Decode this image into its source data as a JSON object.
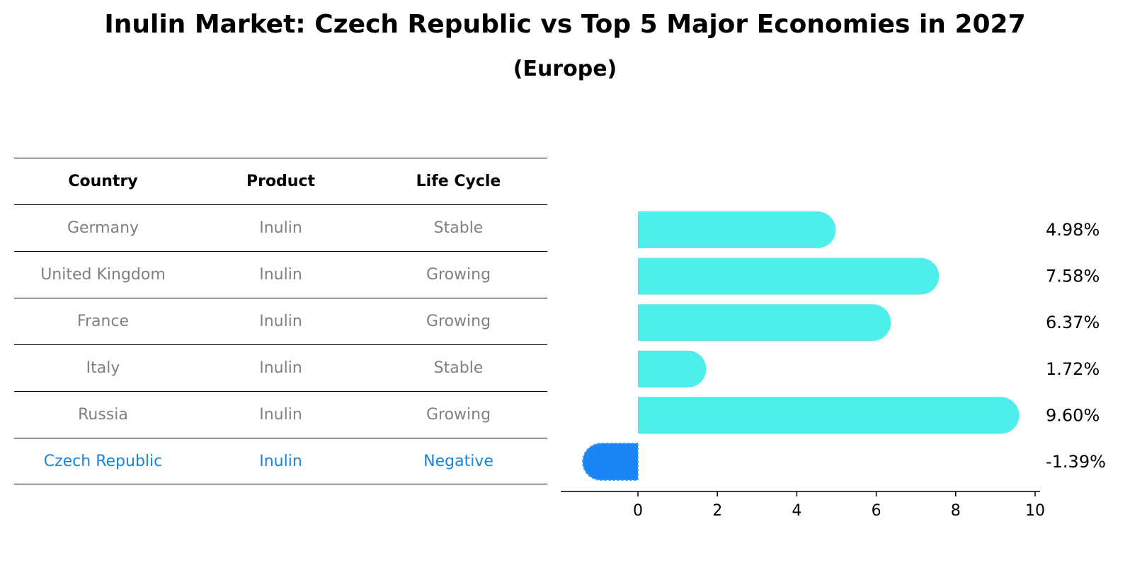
{
  "title": "Inulin Market: Czech Republic vs Top 5 Major Economies in 2027",
  "subtitle": "(Europe)",
  "table": {
    "headers": [
      "Country",
      "Product",
      "Life Cycle"
    ],
    "rows": [
      [
        "Germany",
        "Inulin",
        "Stable"
      ],
      [
        "United Kingdom",
        "Inulin",
        "Growing"
      ],
      [
        "France",
        "Inulin",
        "Growing"
      ],
      [
        "Italy",
        "Inulin",
        "Stable"
      ],
      [
        "Russia",
        "Inulin",
        "Growing"
      ],
      [
        "Czech Republic",
        "Inulin",
        "Negative"
      ]
    ]
  },
  "chart_data": {
    "type": "bar",
    "orientation": "horizontal",
    "categories": [
      "Germany",
      "United Kingdom",
      "France",
      "Italy",
      "Russia",
      "Czech Republic"
    ],
    "values": [
      4.98,
      7.58,
      6.37,
      1.72,
      9.6,
      -1.39
    ],
    "value_labels": [
      "4.98%",
      "7.58%",
      "6.37%",
      "1.72%",
      "9.60%",
      "-1.39%"
    ],
    "xlim": [
      -2,
      10
    ],
    "xticks": [
      0,
      2,
      4,
      6,
      8,
      10
    ],
    "colors": {
      "default": "#4eeeea",
      "highlight": "#1a85f6"
    },
    "highlight": "Czech Republic"
  }
}
